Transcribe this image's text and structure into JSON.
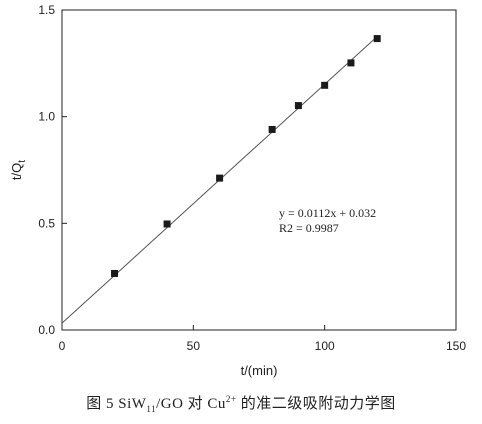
{
  "chart_data": {
    "type": "scatter",
    "xlabel": "t/(min)",
    "ylabel": {
      "base": "t/Q",
      "subscript": "t"
    },
    "xlim": [
      0,
      150
    ],
    "ylim": [
      0,
      1.5
    ],
    "xticks": [
      0,
      50,
      100,
      150
    ],
    "yticks": [
      0.0,
      0.5,
      1.0,
      1.5
    ],
    "ytick_labels": [
      "0.0",
      "0.5",
      "1.0",
      "1.5"
    ],
    "x": [
      20,
      40,
      60,
      80,
      90,
      100,
      110,
      120
    ],
    "y": [
      0.265,
      0.497,
      0.712,
      0.94,
      1.052,
      1.147,
      1.252,
      1.366
    ],
    "fit": {
      "slope": 0.0112,
      "intercept": 0.032,
      "x_range": [
        0,
        120
      ]
    },
    "annotations": [
      "y = 0.0112x + 0.032",
      "R2 = 0.9987"
    ],
    "grid": false
  },
  "caption": {
    "prefix": "图 5   SiW",
    "sub": "11",
    "mid": "/GO 对 Cu",
    "sup": "2+",
    "suffix": " 的准二级吸附动力学图"
  }
}
